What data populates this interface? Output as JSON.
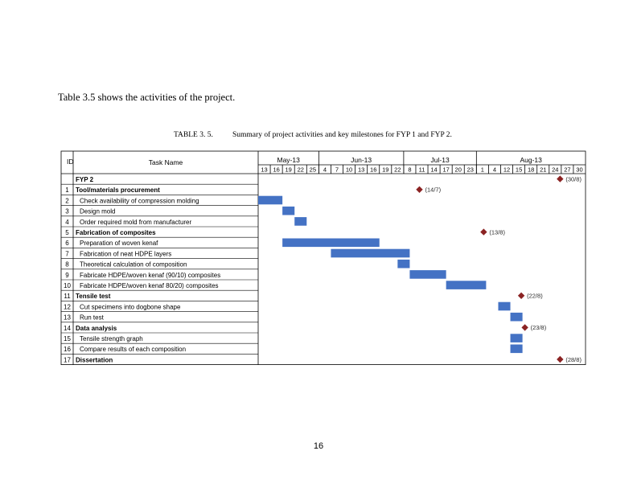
{
  "intro_text": "Table 3.5 shows the activities of the project.",
  "caption": {
    "number": "TABLE 3. 5.",
    "text": "Summary of project activities and key milestones for FYP 1 and FYP 2."
  },
  "page_number": "16",
  "gantt": {
    "header": {
      "id": "ID",
      "task": "Task Name"
    },
    "months": [
      "May-13",
      "Jun-13",
      "Jul-13",
      "Aug-13"
    ],
    "ticks": [
      "13",
      "16",
      "19",
      "22",
      "25",
      "4",
      "7",
      "10",
      "13",
      "16",
      "19",
      "22",
      "8",
      "11",
      "14",
      "17",
      "20",
      "23",
      "1",
      "4",
      "12",
      "15",
      "18",
      "21",
      "24",
      "27",
      "30"
    ],
    "bar_color": "#4472c4",
    "milestone_color": "#8b2323",
    "rows": [
      {
        "id": "",
        "name": "FYP 2",
        "bold": true,
        "indent": false
      },
      {
        "id": "1",
        "name": "Tool/materials procurement",
        "bold": true,
        "indent": false
      },
      {
        "id": "2",
        "name": "Check availability of compression molding",
        "bold": false,
        "indent": true
      },
      {
        "id": "3",
        "name": "Design mold",
        "bold": false,
        "indent": true
      },
      {
        "id": "4",
        "name": "Order required mold from manufacturer",
        "bold": false,
        "indent": true
      },
      {
        "id": "5",
        "name": "Fabrication of composites",
        "bold": true,
        "indent": false
      },
      {
        "id": "6",
        "name": "Preparation of woven kenaf",
        "bold": false,
        "indent": true
      },
      {
        "id": "7",
        "name": "Fabrication of neat HDPE layers",
        "bold": false,
        "indent": true
      },
      {
        "id": "8",
        "name": "Theoretical calculation of composition",
        "bold": false,
        "indent": true
      },
      {
        "id": "9",
        "name": "Fabricate HDPE/woven kenaf (90/10) composites",
        "bold": false,
        "indent": true
      },
      {
        "id": "10",
        "name": "Fabricate HDPE/woven kenaf 80/20) composites",
        "bold": false,
        "indent": true
      },
      {
        "id": "11",
        "name": "Tensile test",
        "bold": true,
        "indent": false
      },
      {
        "id": "12",
        "name": "Cut specimens into dogbone shape",
        "bold": false,
        "indent": true
      },
      {
        "id": "13",
        "name": "Run test",
        "bold": false,
        "indent": true
      },
      {
        "id": "14",
        "name": "Data analysis",
        "bold": true,
        "indent": false
      },
      {
        "id": "15",
        "name": "Tensile strength graph",
        "bold": false,
        "indent": true
      },
      {
        "id": "16",
        "name": "Compare results of each composition",
        "bold": false,
        "indent": true
      },
      {
        "id": "17",
        "name": "Dissertation",
        "bold": true,
        "indent": false
      }
    ],
    "bars": [
      {
        "row": 2,
        "start_col": 0,
        "end_col": 2
      },
      {
        "row": 3,
        "start_col": 2,
        "end_col": 3
      },
      {
        "row": 4,
        "start_col": 3,
        "end_col": 4
      },
      {
        "row": 6,
        "start_col": 2,
        "end_col": 10
      },
      {
        "row": 7,
        "start_col": 6,
        "end_col": 12.5
      },
      {
        "row": 8,
        "start_col": 11.5,
        "end_col": 12.5
      },
      {
        "row": 9,
        "start_col": 12.5,
        "end_col": 15.5
      },
      {
        "row": 10,
        "start_col": 15.5,
        "end_col": 18.8
      },
      {
        "row": 12,
        "start_col": 19.8,
        "end_col": 20.8
      },
      {
        "row": 13,
        "start_col": 20.8,
        "end_col": 21.8
      },
      {
        "row": 15,
        "start_col": 20.8,
        "end_col": 21.8
      },
      {
        "row": 16,
        "start_col": 20.8,
        "end_col": 21.8
      }
    ],
    "milestones": [
      {
        "row": 0,
        "col": 24.9,
        "label": "(30/8)"
      },
      {
        "row": 1,
        "col": 13.3,
        "label": "(14/7)"
      },
      {
        "row": 5,
        "col": 18.6,
        "label": "(13/8)"
      },
      {
        "row": 11,
        "col": 21.7,
        "label": "(22/8)"
      },
      {
        "row": 14,
        "col": 22.0,
        "label": "(23/8)"
      },
      {
        "row": 17,
        "col": 24.9,
        "label": "(28/8)"
      }
    ]
  }
}
